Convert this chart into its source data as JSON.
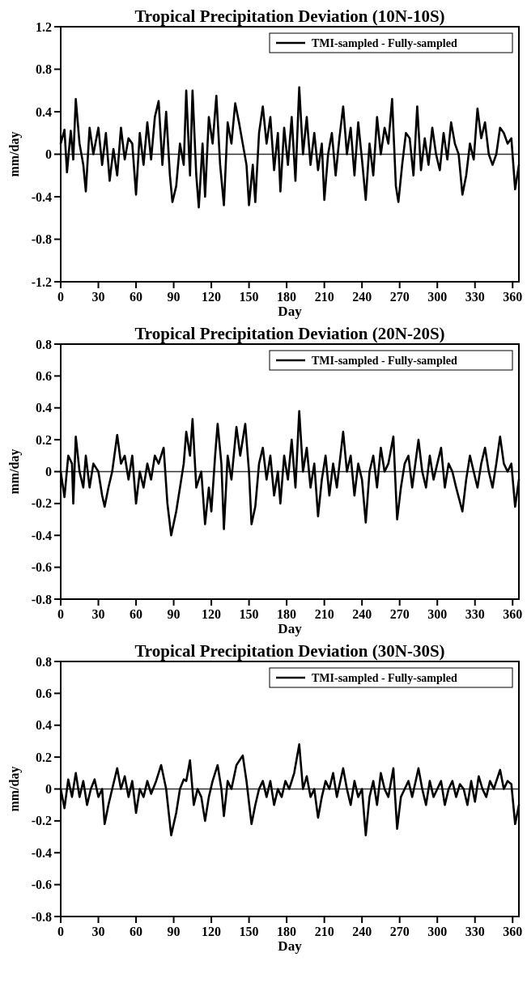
{
  "chart_data": [
    {
      "type": "line",
      "title": "Tropical Precipitation Deviation (10N-10S)",
      "xlabel": "Day",
      "ylabel": "mm/day",
      "xlim": [
        0,
        365
      ],
      "ylim": [
        -1.2,
        1.2
      ],
      "xticks": [
        0,
        30,
        60,
        90,
        120,
        150,
        180,
        210,
        240,
        270,
        300,
        330,
        360
      ],
      "yticks": [
        -1.2,
        -0.8,
        -0.4,
        0,
        0.4,
        0.8,
        1.2
      ],
      "legend": "top right",
      "grid": false,
      "ref_lines": [
        {
          "axis": "y",
          "value": 0,
          "color": "#333333"
        }
      ],
      "series": [
        {
          "name": "TMI-sampled - Fully-sampled",
          "color": "#000000",
          "x": [
            0,
            3,
            5,
            8,
            10,
            12,
            15,
            18,
            20,
            23,
            26,
            30,
            33,
            36,
            39,
            42,
            45,
            48,
            51,
            54,
            57,
            60,
            63,
            66,
            69,
            72,
            75,
            78,
            81,
            84,
            87,
            89,
            92,
            95,
            98,
            100,
            103,
            105,
            108,
            110,
            113,
            115,
            118,
            121,
            124,
            127,
            130,
            133,
            136,
            139,
            142,
            145,
            148,
            150,
            153,
            155,
            158,
            161,
            164,
            167,
            170,
            173,
            175,
            178,
            181,
            184,
            187,
            190,
            193,
            196,
            199,
            202,
            205,
            208,
            210,
            213,
            216,
            219,
            222,
            225,
            228,
            231,
            234,
            237,
            240,
            243,
            246,
            249,
            252,
            255,
            258,
            261,
            264,
            267,
            269,
            272,
            275,
            278,
            281,
            284,
            287,
            290,
            293,
            296,
            299,
            302,
            305,
            308,
            311,
            314,
            317,
            320,
            323,
            326,
            329,
            332,
            335,
            338,
            341,
            344,
            347,
            350,
            353,
            356,
            359,
            362,
            365
          ],
          "values": [
            0.1,
            0.23,
            -0.17,
            0.22,
            -0.05,
            0.52,
            0.1,
            -0.1,
            -0.35,
            0.25,
            0.0,
            0.25,
            -0.1,
            0.2,
            -0.25,
            0.05,
            -0.2,
            0.25,
            -0.05,
            0.15,
            0.1,
            -0.38,
            0.2,
            -0.1,
            0.3,
            -0.05,
            0.35,
            0.5,
            -0.1,
            0.4,
            -0.2,
            -0.45,
            -0.3,
            0.1,
            -0.1,
            0.6,
            -0.2,
            0.6,
            -0.2,
            -0.5,
            0.1,
            -0.4,
            0.35,
            0.1,
            0.55,
            -0.1,
            -0.48,
            0.3,
            0.1,
            0.48,
            0.3,
            0.1,
            -0.1,
            -0.48,
            -0.1,
            -0.45,
            0.2,
            0.45,
            0.1,
            0.35,
            -0.15,
            0.2,
            -0.35,
            0.25,
            -0.1,
            0.35,
            -0.25,
            0.63,
            0.0,
            0.35,
            -0.1,
            0.2,
            -0.15,
            0.1,
            -0.43,
            0.0,
            0.2,
            -0.2,
            0.15,
            0.45,
            0.0,
            0.25,
            -0.2,
            0.3,
            -0.05,
            -0.43,
            0.1,
            -0.2,
            0.35,
            0.0,
            0.25,
            0.1,
            0.52,
            -0.3,
            -0.45,
            -0.1,
            0.2,
            0.15,
            -0.2,
            0.45,
            -0.15,
            0.15,
            -0.1,
            0.25,
            0.0,
            -0.15,
            0.2,
            -0.05,
            0.3,
            0.1,
            0.0,
            -0.38,
            -0.2,
            0.1,
            -0.05,
            0.43,
            0.15,
            0.3,
            0.0,
            -0.1,
            0.0,
            0.25,
            0.2,
            0.1,
            0.15,
            -0.33,
            -0.1
          ]
        }
      ]
    },
    {
      "type": "line",
      "title": "Tropical Precipitation Deviation (20N-20S)",
      "xlabel": "Day",
      "ylabel": "mm/day",
      "xlim": [
        0,
        365
      ],
      "ylim": [
        -0.8,
        0.8
      ],
      "xticks": [
        0,
        30,
        60,
        90,
        120,
        150,
        180,
        210,
        240,
        270,
        300,
        330,
        360
      ],
      "yticks": [
        -0.8,
        -0.6,
        -0.4,
        -0.2,
        0,
        0.2,
        0.4,
        0.6,
        0.8
      ],
      "legend": "top right",
      "grid": false,
      "ref_lines": [
        {
          "axis": "y",
          "value": 0,
          "color": "#333333"
        }
      ],
      "series": [
        {
          "name": "TMI-sampled - Fully-sampled",
          "color": "#000000",
          "x": [
            0,
            3,
            6,
            9,
            10,
            12,
            15,
            18,
            20,
            23,
            26,
            30,
            33,
            35,
            38,
            41,
            45,
            48,
            51,
            54,
            57,
            60,
            63,
            66,
            69,
            72,
            75,
            78,
            82,
            85,
            88,
            92,
            95,
            98,
            100,
            103,
            105,
            108,
            112,
            115,
            118,
            120,
            123,
            125,
            128,
            130,
            133,
            136,
            140,
            143,
            147,
            150,
            152,
            155,
            158,
            161,
            164,
            167,
            170,
            173,
            175,
            178,
            181,
            184,
            187,
            190,
            193,
            196,
            199,
            202,
            205,
            208,
            211,
            214,
            217,
            220,
            225,
            228,
            231,
            234,
            237,
            240,
            243,
            246,
            249,
            252,
            255,
            258,
            261,
            265,
            268,
            271,
            274,
            277,
            280,
            285,
            288,
            291,
            294,
            297,
            300,
            303,
            306,
            309,
            312,
            315,
            320,
            323,
            326,
            329,
            332,
            335,
            338,
            341,
            344,
            347,
            350,
            353,
            356,
            359,
            362,
            365
          ],
          "values": [
            0.0,
            -0.16,
            0.1,
            0.05,
            -0.2,
            0.22,
            0.0,
            -0.1,
            0.1,
            -0.1,
            0.05,
            0.0,
            -0.15,
            -0.22,
            -0.1,
            0.0,
            0.23,
            0.05,
            0.1,
            -0.05,
            0.1,
            -0.2,
            0.0,
            -0.1,
            0.05,
            -0.05,
            0.1,
            0.05,
            0.15,
            -0.2,
            -0.4,
            -0.25,
            -0.1,
            0.05,
            0.25,
            0.1,
            0.33,
            -0.1,
            0.0,
            -0.33,
            -0.1,
            -0.25,
            0.1,
            0.3,
            0.05,
            -0.36,
            0.1,
            -0.05,
            0.28,
            0.1,
            0.3,
            0.0,
            -0.33,
            -0.22,
            0.05,
            0.15,
            -0.05,
            0.1,
            -0.15,
            0.0,
            -0.2,
            0.1,
            -0.05,
            0.2,
            -0.1,
            0.38,
            0.0,
            0.15,
            -0.1,
            0.05,
            -0.28,
            -0.05,
            0.1,
            -0.15,
            0.05,
            -0.1,
            0.25,
            0.0,
            0.1,
            -0.15,
            0.05,
            -0.05,
            -0.32,
            0.0,
            0.1,
            -0.1,
            0.15,
            0.0,
            0.05,
            0.22,
            -0.3,
            -0.1,
            0.05,
            0.1,
            -0.1,
            0.2,
            0.0,
            -0.1,
            0.1,
            -0.05,
            0.05,
            0.15,
            -0.1,
            0.05,
            0.0,
            -0.1,
            -0.25,
            -0.05,
            0.1,
            0.0,
            -0.1,
            0.05,
            0.15,
            0.0,
            -0.1,
            0.05,
            0.22,
            0.05,
            0.0,
            0.05,
            -0.22,
            -0.05
          ]
        }
      ]
    },
    {
      "type": "line",
      "title": "Tropical Precipitation Deviation (30N-30S)",
      "xlabel": "Day",
      "ylabel": "mm/day",
      "xlim": [
        0,
        365
      ],
      "ylim": [
        -0.8,
        0.8
      ],
      "xticks": [
        0,
        30,
        60,
        90,
        120,
        150,
        180,
        210,
        240,
        270,
        300,
        330,
        360
      ],
      "yticks": [
        -0.8,
        -0.6,
        -0.4,
        -0.2,
        0,
        0.2,
        0.4,
        0.6,
        0.8
      ],
      "legend": "top right",
      "grid": false,
      "ref_lines": [
        {
          "axis": "y",
          "value": 0,
          "color": "#333333"
        }
      ],
      "series": [
        {
          "name": "TMI-sampled - Fully-sampled",
          "color": "#000000",
          "x": [
            0,
            3,
            6,
            9,
            12,
            15,
            18,
            21,
            24,
            27,
            30,
            33,
            35,
            38,
            41,
            45,
            48,
            51,
            54,
            57,
            60,
            63,
            66,
            69,
            72,
            76,
            80,
            84,
            88,
            92,
            95,
            98,
            100,
            103,
            106,
            109,
            112,
            115,
            118,
            121,
            125,
            128,
            130,
            133,
            136,
            140,
            145,
            148,
            152,
            155,
            158,
            161,
            164,
            167,
            170,
            173,
            176,
            179,
            182,
            186,
            190,
            193,
            196,
            199,
            202,
            205,
            208,
            211,
            214,
            217,
            220,
            225,
            228,
            231,
            234,
            237,
            240,
            243,
            246,
            249,
            252,
            255,
            258,
            261,
            265,
            268,
            271,
            274,
            277,
            280,
            285,
            288,
            291,
            294,
            297,
            300,
            303,
            306,
            309,
            312,
            315,
            318,
            321,
            324,
            327,
            330,
            333,
            336,
            339,
            342,
            345,
            350,
            353,
            356,
            359,
            362,
            365
          ],
          "values": [
            0.0,
            -0.12,
            0.06,
            -0.05,
            0.1,
            -0.05,
            0.05,
            -0.1,
            0.0,
            0.06,
            -0.05,
            0.0,
            -0.22,
            -0.1,
            0.0,
            0.13,
            0.0,
            0.08,
            -0.05,
            0.05,
            -0.15,
            0.0,
            -0.05,
            0.05,
            -0.03,
            0.05,
            0.15,
            0.0,
            -0.29,
            -0.15,
            0.0,
            0.06,
            0.05,
            0.18,
            -0.1,
            0.0,
            -0.05,
            -0.2,
            -0.05,
            0.05,
            0.15,
            0.0,
            -0.17,
            0.05,
            0.0,
            0.15,
            0.21,
            0.05,
            -0.22,
            -0.1,
            0.0,
            0.05,
            -0.05,
            0.05,
            -0.1,
            0.0,
            -0.05,
            0.05,
            0.0,
            0.1,
            0.28,
            0.0,
            0.08,
            -0.05,
            0.0,
            -0.18,
            -0.05,
            0.05,
            0.0,
            0.1,
            -0.05,
            0.13,
            0.0,
            -0.1,
            0.05,
            -0.05,
            0.0,
            -0.29,
            -0.05,
            0.05,
            -0.1,
            0.1,
            0.0,
            -0.05,
            0.13,
            -0.25,
            -0.05,
            0.0,
            0.05,
            -0.05,
            0.13,
            0.0,
            -0.1,
            0.05,
            -0.05,
            0.0,
            0.05,
            -0.1,
            0.0,
            0.05,
            -0.05,
            0.03,
            0.0,
            -0.1,
            0.05,
            -0.08,
            0.08,
            0.0,
            -0.05,
            0.05,
            0.0,
            0.12,
            0.0,
            0.05,
            0.03,
            -0.22,
            -0.1
          ]
        }
      ]
    }
  ]
}
